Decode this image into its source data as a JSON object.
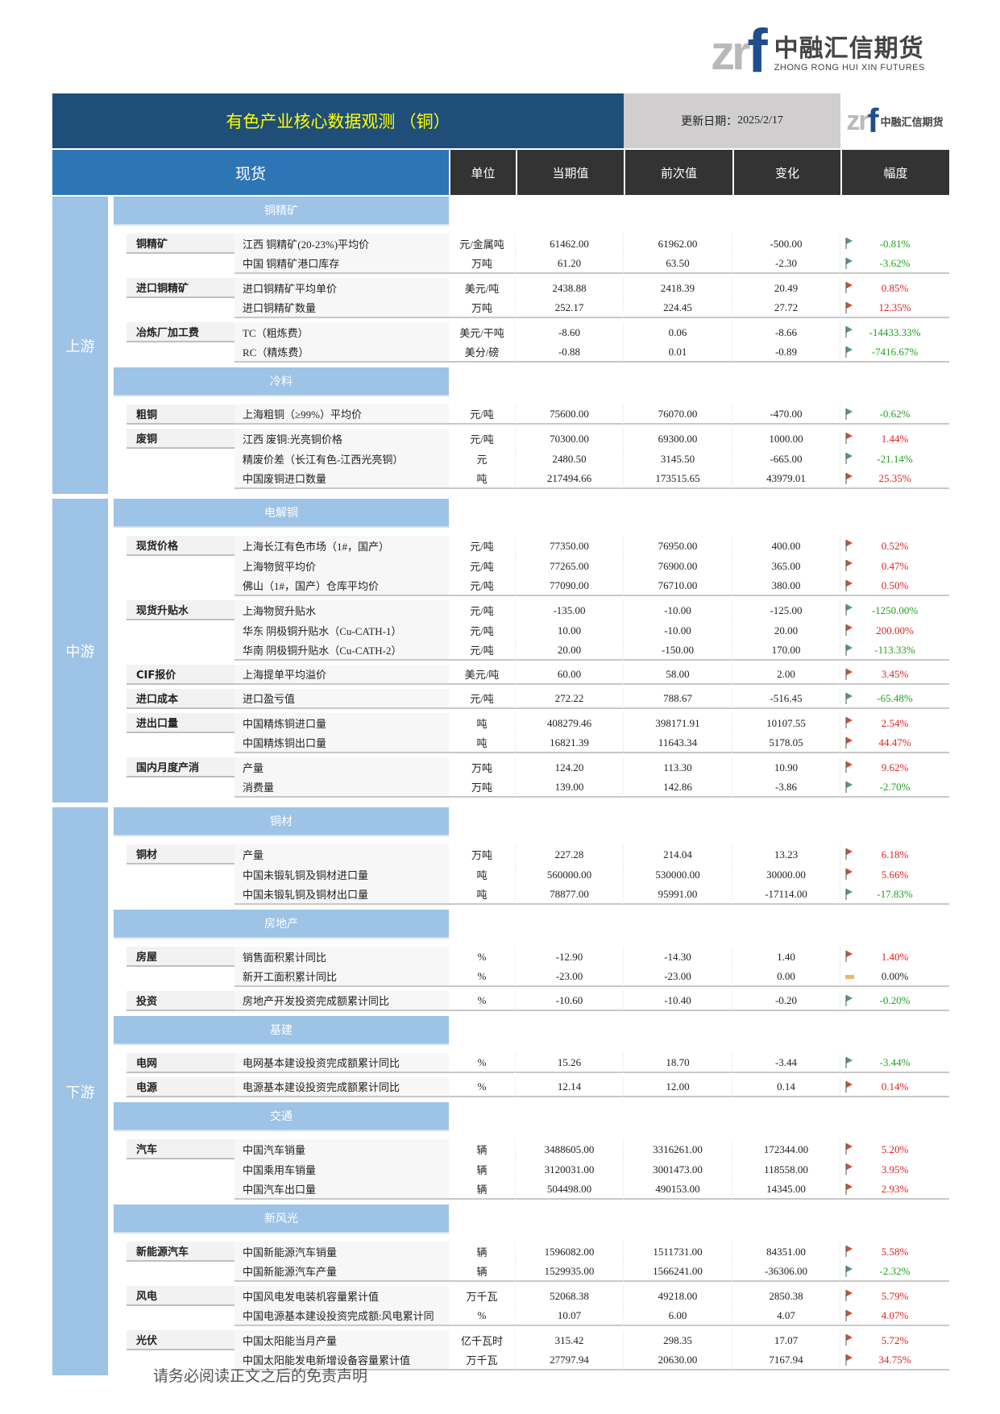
{
  "logo": {
    "mark_zr": "zr",
    "mark_f": "f",
    "cn": "中融汇信期货",
    "en": "ZHONG RONG HUI XIN FUTURES"
  },
  "title": "有色产业核心数据观测 （铜）",
  "update_label": "更新日期：",
  "update_date": "2025/2/17",
  "header": {
    "spot": "现货",
    "unit": "单位",
    "current": "当期值",
    "previous": "前次值",
    "change": "变化",
    "pct": "幅度"
  },
  "colors": {
    "title_bg": "#1F4E79",
    "title_text": "#FFFF00",
    "spot_bg": "#2E75B6",
    "col_header_bg": "#333333",
    "stage_bg": "#9DC3E6",
    "up": "#E02020",
    "down": "#22A022"
  },
  "stages": [
    {
      "label": "上游",
      "sections": [
        {
          "title": "铜精矿",
          "groups": [
            {
              "label": "铜精矿",
              "rows": [
                {
                  "item": "江西 铜精矿(20-23%)平均价",
                  "unit": "元/金属吨",
                  "cur": "61462.00",
                  "prev": "61962.00",
                  "chg": "-500.00",
                  "pct": "-0.81%",
                  "dir": "down"
                },
                {
                  "item": "中国 铜精矿港口库存",
                  "unit": "万吨",
                  "cur": "61.20",
                  "prev": "63.50",
                  "chg": "-2.30",
                  "pct": "-3.62%",
                  "dir": "down"
                }
              ]
            },
            {
              "label": "进口铜精矿",
              "rows": [
                {
                  "item": "进口铜精矿平均单价",
                  "unit": "美元/吨",
                  "cur": "2438.88",
                  "prev": "2418.39",
                  "chg": "20.49",
                  "pct": "0.85%",
                  "dir": "up"
                },
                {
                  "item": "进口铜精矿数量",
                  "unit": "万吨",
                  "cur": "252.17",
                  "prev": "224.45",
                  "chg": "27.72",
                  "pct": "12.35%",
                  "dir": "up"
                }
              ]
            },
            {
              "label": "冶炼厂加工费",
              "rows": [
                {
                  "item": "TC（粗炼费）",
                  "unit": "美元/干吨",
                  "cur": "-8.60",
                  "prev": "0.06",
                  "chg": "-8.66",
                  "pct": "-14433.33%",
                  "dir": "down"
                },
                {
                  "item": "RC（精炼费）",
                  "unit": "美分/磅",
                  "cur": "-0.88",
                  "prev": "0.01",
                  "chg": "-0.89",
                  "pct": "-7416.67%",
                  "dir": "down"
                }
              ]
            }
          ]
        },
        {
          "title": "冷料",
          "groups": [
            {
              "label": "粗铜",
              "rows": [
                {
                  "item": "上海粗铜（≥99%）平均价",
                  "unit": "元/吨",
                  "cur": "75600.00",
                  "prev": "76070.00",
                  "chg": "-470.00",
                  "pct": "-0.62%",
                  "dir": "down"
                }
              ]
            },
            {
              "label": "废铜",
              "rows": [
                {
                  "item": "江西 废铜:光亮铜价格",
                  "unit": "元/吨",
                  "cur": "70300.00",
                  "prev": "69300.00",
                  "chg": "1000.00",
                  "pct": "1.44%",
                  "dir": "up"
                },
                {
                  "item": "精废价差（长江有色-江西光亮铜）",
                  "unit": "元",
                  "cur": "2480.50",
                  "prev": "3145.50",
                  "chg": "-665.00",
                  "pct": "-21.14%",
                  "dir": "down"
                },
                {
                  "item": "中国废铜进口数量",
                  "unit": "吨",
                  "cur": "217494.66",
                  "prev": "173515.65",
                  "chg": "43979.01",
                  "pct": "25.35%",
                  "dir": "up"
                }
              ]
            }
          ]
        }
      ]
    },
    {
      "label": "中游",
      "sections": [
        {
          "title": "电解铜",
          "groups": [
            {
              "label": "现货价格",
              "rows": [
                {
                  "item": "上海长江有色市场（1#，国产）",
                  "unit": "元/吨",
                  "cur": "77350.00",
                  "prev": "76950.00",
                  "chg": "400.00",
                  "pct": "0.52%",
                  "dir": "up"
                },
                {
                  "item": "上海物贸平均价",
                  "unit": "元/吨",
                  "cur": "77265.00",
                  "prev": "76900.00",
                  "chg": "365.00",
                  "pct": "0.47%",
                  "dir": "up"
                },
                {
                  "item": "佛山（1#，国产）仓库平均价",
                  "unit": "元/吨",
                  "cur": "77090.00",
                  "prev": "76710.00",
                  "chg": "380.00",
                  "pct": "0.50%",
                  "dir": "up"
                }
              ]
            },
            {
              "label": "现货升贴水",
              "rows": [
                {
                  "item": "上海物贸升贴水",
                  "unit": "元/吨",
                  "cur": "-135.00",
                  "prev": "-10.00",
                  "chg": "-125.00",
                  "pct": "-1250.00%",
                  "dir": "down"
                },
                {
                  "item": "华东 阴极铜升贴水（Cu-CATH-1）",
                  "unit": "元/吨",
                  "cur": "10.00",
                  "prev": "-10.00",
                  "chg": "20.00",
                  "pct": "200.00%",
                  "dir": "up"
                },
                {
                  "item": "华南 阴极铜升贴水（Cu-CATH-2）",
                  "unit": "元/吨",
                  "cur": "20.00",
                  "prev": "-150.00",
                  "chg": "170.00",
                  "pct": "-113.33%",
                  "dir": "down"
                }
              ]
            },
            {
              "label": "CIF报价",
              "rows": [
                {
                  "item": "上海提单平均溢价",
                  "unit": "美元/吨",
                  "cur": "60.00",
                  "prev": "58.00",
                  "chg": "2.00",
                  "pct": "3.45%",
                  "dir": "up"
                }
              ]
            },
            {
              "label": "进口成本",
              "rows": [
                {
                  "item": "进口盈亏值",
                  "unit": "元/吨",
                  "cur": "272.22",
                  "prev": "788.67",
                  "chg": "-516.45",
                  "pct": "-65.48%",
                  "dir": "down"
                }
              ]
            },
            {
              "label": "进出口量",
              "rows": [
                {
                  "item": "中国精炼铜进口量",
                  "unit": "吨",
                  "cur": "408279.46",
                  "prev": "398171.91",
                  "chg": "10107.55",
                  "pct": "2.54%",
                  "dir": "up"
                },
                {
                  "item": "中国精炼铜出口量",
                  "unit": "吨",
                  "cur": "16821.39",
                  "prev": "11643.34",
                  "chg": "5178.05",
                  "pct": "44.47%",
                  "dir": "up"
                }
              ]
            },
            {
              "label": "国内月度产消",
              "rows": [
                {
                  "item": "产量",
                  "unit": "万吨",
                  "cur": "124.20",
                  "prev": "113.30",
                  "chg": "10.90",
                  "pct": "9.62%",
                  "dir": "up"
                },
                {
                  "item": "消费量",
                  "unit": "万吨",
                  "cur": "139.00",
                  "prev": "142.86",
                  "chg": "-3.86",
                  "pct": "-2.70%",
                  "dir": "down"
                }
              ]
            }
          ]
        }
      ]
    },
    {
      "label": "下游",
      "sections": [
        {
          "title": "铜材",
          "groups": [
            {
              "label": "铜材",
              "rows": [
                {
                  "item": "产量",
                  "unit": "万吨",
                  "cur": "227.28",
                  "prev": "214.04",
                  "chg": "13.23",
                  "pct": "6.18%",
                  "dir": "up"
                },
                {
                  "item": "中国未锻轧铜及铜材进口量",
                  "unit": "吨",
                  "cur": "560000.00",
                  "prev": "530000.00",
                  "chg": "30000.00",
                  "pct": "5.66%",
                  "dir": "up"
                },
                {
                  "item": "中国未锻轧铜及铜材出口量",
                  "unit": "吨",
                  "cur": "78877.00",
                  "prev": "95991.00",
                  "chg": "-17114.00",
                  "pct": "-17.83%",
                  "dir": "down"
                }
              ]
            }
          ]
        },
        {
          "title": "房地产",
          "groups": [
            {
              "label": "房屋",
              "rows": [
                {
                  "item": "销售面积累计同比",
                  "unit": "%",
                  "cur": "-12.90",
                  "prev": "-14.30",
                  "chg": "1.40",
                  "pct": "1.40%",
                  "dir": "up"
                },
                {
                  "item": "新开工面积累计同比",
                  "unit": "%",
                  "cur": "-23.00",
                  "prev": "-23.00",
                  "chg": "0.00",
                  "pct": "0.00%",
                  "dir": "flat"
                }
              ]
            },
            {
              "label": "投资",
              "rows": [
                {
                  "item": "房地产开发投资完成额累计同比",
                  "unit": "%",
                  "cur": "-10.60",
                  "prev": "-10.40",
                  "chg": "-0.20",
                  "pct": "-0.20%",
                  "dir": "down"
                }
              ]
            }
          ]
        },
        {
          "title": "基建",
          "groups": [
            {
              "label": "电网",
              "rows": [
                {
                  "item": "电网基本建设投资完成额累计同比",
                  "unit": "%",
                  "cur": "15.26",
                  "prev": "18.70",
                  "chg": "-3.44",
                  "pct": "-3.44%",
                  "dir": "down"
                }
              ]
            },
            {
              "label": "电源",
              "rows": [
                {
                  "item": "电源基本建设投资完成额累计同比",
                  "unit": "%",
                  "cur": "12.14",
                  "prev": "12.00",
                  "chg": "0.14",
                  "pct": "0.14%",
                  "dir": "up"
                }
              ]
            }
          ]
        },
        {
          "title": "交通",
          "groups": [
            {
              "label": "汽车",
              "rows": [
                {
                  "item": "中国汽车销量",
                  "unit": "辆",
                  "cur": "3488605.00",
                  "prev": "3316261.00",
                  "chg": "172344.00",
                  "pct": "5.20%",
                  "dir": "up"
                },
                {
                  "item": "中国乘用车销量",
                  "unit": "辆",
                  "cur": "3120031.00",
                  "prev": "3001473.00",
                  "chg": "118558.00",
                  "pct": "3.95%",
                  "dir": "up"
                },
                {
                  "item": "中国汽车出口量",
                  "unit": "辆",
                  "cur": "504498.00",
                  "prev": "490153.00",
                  "chg": "14345.00",
                  "pct": "2.93%",
                  "dir": "up"
                }
              ]
            }
          ]
        },
        {
          "title": "新风光",
          "groups": [
            {
              "label": "新能源汽车",
              "rows": [
                {
                  "item": "中国新能源汽车销量",
                  "unit": "辆",
                  "cur": "1596082.00",
                  "prev": "1511731.00",
                  "chg": "84351.00",
                  "pct": "5.58%",
                  "dir": "up"
                },
                {
                  "item": "中国新能源汽车产量",
                  "unit": "辆",
                  "cur": "1529935.00",
                  "prev": "1566241.00",
                  "chg": "-36306.00",
                  "pct": "-2.32%",
                  "dir": "down"
                }
              ]
            },
            {
              "label": "风电",
              "rows": [
                {
                  "item": "中国风电发电装机容量累计值",
                  "unit": "万千瓦",
                  "cur": "52068.38",
                  "prev": "49218.00",
                  "chg": "2850.38",
                  "pct": "5.79%",
                  "dir": "up"
                },
                {
                  "item": "中国电源基本建设投资完成额:风电累计同",
                  "unit": "%",
                  "cur": "10.07",
                  "prev": "6.00",
                  "chg": "4.07",
                  "pct": "4.07%",
                  "dir": "up"
                }
              ]
            },
            {
              "label": "光伏",
              "rows": [
                {
                  "item": "中国太阳能当月产量",
                  "unit": "亿千瓦时",
                  "cur": "315.42",
                  "prev": "298.35",
                  "chg": "17.07",
                  "pct": "5.72%",
                  "dir": "up"
                },
                {
                  "item": "中国太阳能发电新增设备容量累计值",
                  "unit": "万千瓦",
                  "cur": "27797.94",
                  "prev": "20630.00",
                  "chg": "7167.94",
                  "pct": "34.75%",
                  "dir": "up"
                }
              ]
            }
          ]
        }
      ]
    }
  ],
  "footer": "请务必阅读正文之后的免责声明"
}
